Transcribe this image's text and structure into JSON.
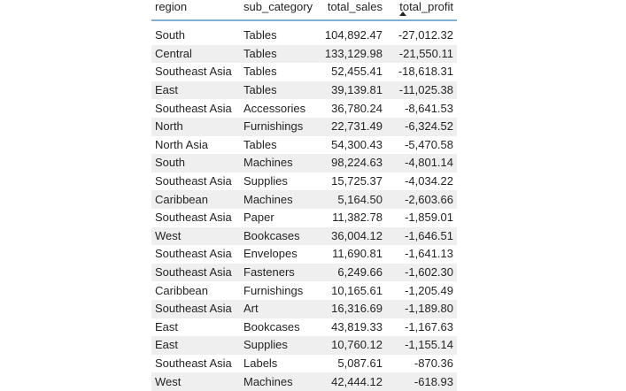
{
  "table": {
    "headers": [
      "region",
      "sub_category",
      "total_sales",
      "total_profit"
    ],
    "sort": {
      "column": "total_profit",
      "direction": "ascending"
    },
    "rows": [
      {
        "region": "South",
        "sub_category": "Tables",
        "total_sales": "104,892.47",
        "total_profit": "-27,012.32"
      },
      {
        "region": "Central",
        "sub_category": "Tables",
        "total_sales": "133,129.98",
        "total_profit": "-21,550.11"
      },
      {
        "region": "Southeast Asia",
        "sub_category": "Tables",
        "total_sales": "52,455.41",
        "total_profit": "-18,618.31"
      },
      {
        "region": "East",
        "sub_category": "Tables",
        "total_sales": "39,139.81",
        "total_profit": "-11,025.38"
      },
      {
        "region": "Southeast Asia",
        "sub_category": "Accessories",
        "total_sales": "36,780.24",
        "total_profit": "-8,641.53"
      },
      {
        "region": "North",
        "sub_category": "Furnishings",
        "total_sales": "22,731.49",
        "total_profit": "-6,324.52"
      },
      {
        "region": "North Asia",
        "sub_category": "Tables",
        "total_sales": "54,300.43",
        "total_profit": "-5,470.58"
      },
      {
        "region": "South",
        "sub_category": "Machines",
        "total_sales": "98,224.63",
        "total_profit": "-4,801.14"
      },
      {
        "region": "Southeast Asia",
        "sub_category": "Supplies",
        "total_sales": "15,725.37",
        "total_profit": "-4,034.22"
      },
      {
        "region": "Caribbean",
        "sub_category": "Machines",
        "total_sales": "5,164.50",
        "total_profit": "-2,603.66"
      },
      {
        "region": "Southeast Asia",
        "sub_category": "Paper",
        "total_sales": "11,382.78",
        "total_profit": "-1,859.01"
      },
      {
        "region": "West",
        "sub_category": "Bookcases",
        "total_sales": "36,004.12",
        "total_profit": "-1,646.51"
      },
      {
        "region": "Southeast Asia",
        "sub_category": "Envelopes",
        "total_sales": "11,690.81",
        "total_profit": "-1,641.13"
      },
      {
        "region": "Southeast Asia",
        "sub_category": "Fasteners",
        "total_sales": "6,249.66",
        "total_profit": "-1,602.30"
      },
      {
        "region": "Caribbean",
        "sub_category": "Furnishings",
        "total_sales": "10,165.61",
        "total_profit": "-1,205.49"
      },
      {
        "region": "Southeast Asia",
        "sub_category": "Art",
        "total_sales": "16,316.69",
        "total_profit": "-1,189.80"
      },
      {
        "region": "East",
        "sub_category": "Bookcases",
        "total_sales": "43,819.33",
        "total_profit": "-1,167.63"
      },
      {
        "region": "East",
        "sub_category": "Supplies",
        "total_sales": "10,760.12",
        "total_profit": "-1,155.14"
      },
      {
        "region": "Southeast Asia",
        "sub_category": "Labels",
        "total_sales": "5,087.61",
        "total_profit": "-870.36"
      },
      {
        "region": "West",
        "sub_category": "Machines",
        "total_sales": "42,444.12",
        "total_profit": "-618.93"
      }
    ]
  },
  "colors": {
    "header_underline": "#7fb0d6",
    "alt_row": "#efefef",
    "text": "#252423"
  }
}
